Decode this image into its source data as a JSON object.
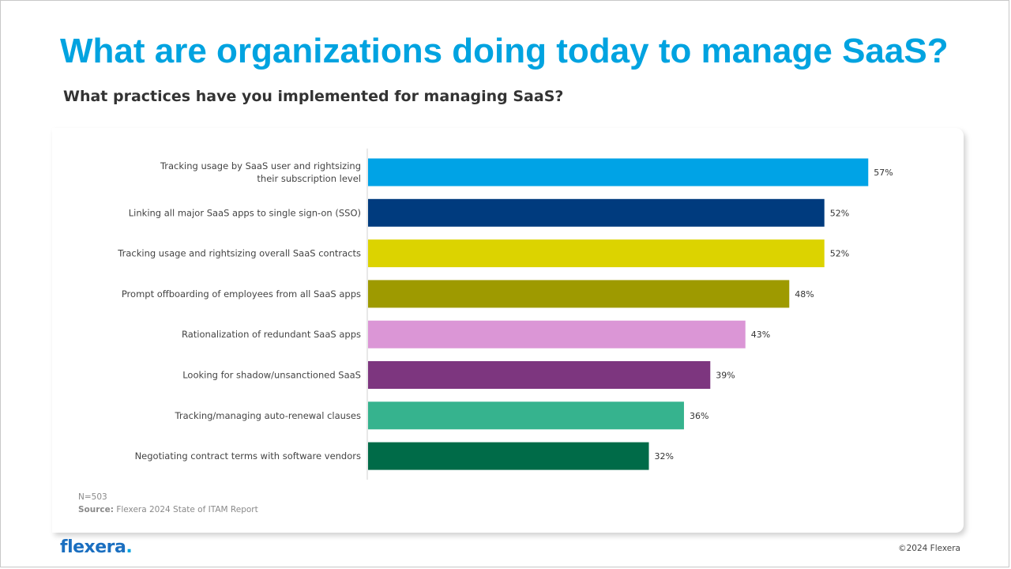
{
  "header": {
    "title": "What are organizations doing today to manage SaaS?",
    "subtitle": "What practices have you implemented for managing SaaS?"
  },
  "chart_data": {
    "type": "bar",
    "orientation": "horizontal",
    "title": "",
    "xlabel": "",
    "ylabel": "",
    "xlim": [
      0,
      100
    ],
    "grid": false,
    "categories": [
      [
        "Tracking usage by SaaS user and rightsizing",
        "their subscription level"
      ],
      [
        "Linking all major SaaS apps to single sign-on (SSO)"
      ],
      [
        "Tracking usage and rightsizing overall SaaS contracts"
      ],
      [
        "Prompt offboarding of employees from all SaaS apps"
      ],
      [
        "Rationalization of redundant SaaS apps"
      ],
      [
        "Looking for shadow/unsanctioned SaaS"
      ],
      [
        "Tracking/managing auto-renewal clauses"
      ],
      [
        "Negotiating contract terms with software vendors"
      ]
    ],
    "values": [
      57,
      52,
      52,
      48,
      43,
      39,
      36,
      32
    ],
    "value_labels": [
      "57%",
      "52%",
      "52%",
      "48%",
      "43%",
      "39%",
      "36%",
      "32%"
    ],
    "colors": [
      "#00a3e6",
      "#003b7e",
      "#dcd300",
      "#9e9a00",
      "#db96d6",
      "#7d367f",
      "#36b38e",
      "#006b48"
    ]
  },
  "footnotes": {
    "n": "N=503",
    "source_label": "Source:",
    "source_text": " Flexera 2024 State of ITAM Report"
  },
  "footer": {
    "logo_main": "flexera",
    "logo_dot": ".",
    "copyright": "©2024 Flexera"
  }
}
